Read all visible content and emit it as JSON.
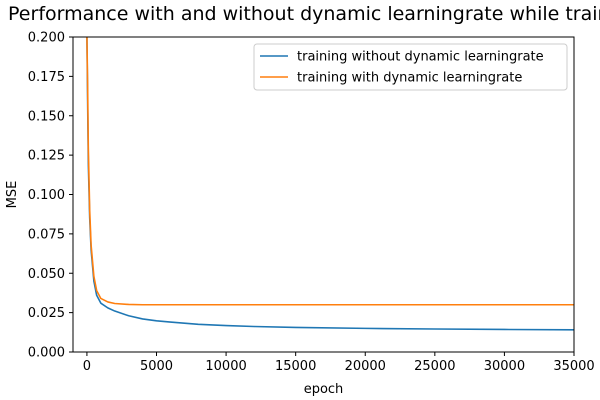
{
  "chart_data": {
    "type": "line",
    "title": "Performance with and without dynamic learningrate while training",
    "xlabel": "epoch",
    "ylabel": "MSE",
    "xlim": [
      -1000,
      35000
    ],
    "ylim": [
      0,
      0.2
    ],
    "xticks": [
      0,
      5000,
      10000,
      15000,
      20000,
      25000,
      30000,
      35000
    ],
    "yticks": [
      "0.000",
      "0.025",
      "0.050",
      "0.075",
      "0.100",
      "0.125",
      "0.150",
      "0.175",
      "0.200"
    ],
    "grid": false,
    "legend_position": "upper right",
    "series": [
      {
        "name": "training without dynamic learningrate",
        "color": "#1f77b4",
        "x": [
          0,
          50,
          100,
          200,
          300,
          500,
          700,
          1000,
          1500,
          2000,
          3000,
          4000,
          5000,
          6000,
          8000,
          10000,
          12000,
          15000,
          20000,
          25000,
          30000,
          35000
        ],
        "y": [
          0.2,
          0.16,
          0.12,
          0.085,
          0.065,
          0.045,
          0.036,
          0.031,
          0.028,
          0.026,
          0.023,
          0.021,
          0.0198,
          0.019,
          0.0176,
          0.0168,
          0.0162,
          0.0156,
          0.015,
          0.0146,
          0.0143,
          0.0141
        ]
      },
      {
        "name": "training with dynamic learningrate",
        "color": "#ff7f0e",
        "x": [
          0,
          50,
          100,
          200,
          300,
          500,
          700,
          1000,
          1500,
          2000,
          3000,
          4000,
          5000,
          10000,
          15000,
          20000,
          25000,
          30000,
          35000
        ],
        "y": [
          0.2,
          0.17,
          0.13,
          0.09,
          0.068,
          0.048,
          0.039,
          0.034,
          0.0318,
          0.0308,
          0.0302,
          0.03,
          0.03,
          0.03,
          0.03,
          0.03,
          0.03,
          0.03,
          0.03
        ]
      }
    ]
  }
}
